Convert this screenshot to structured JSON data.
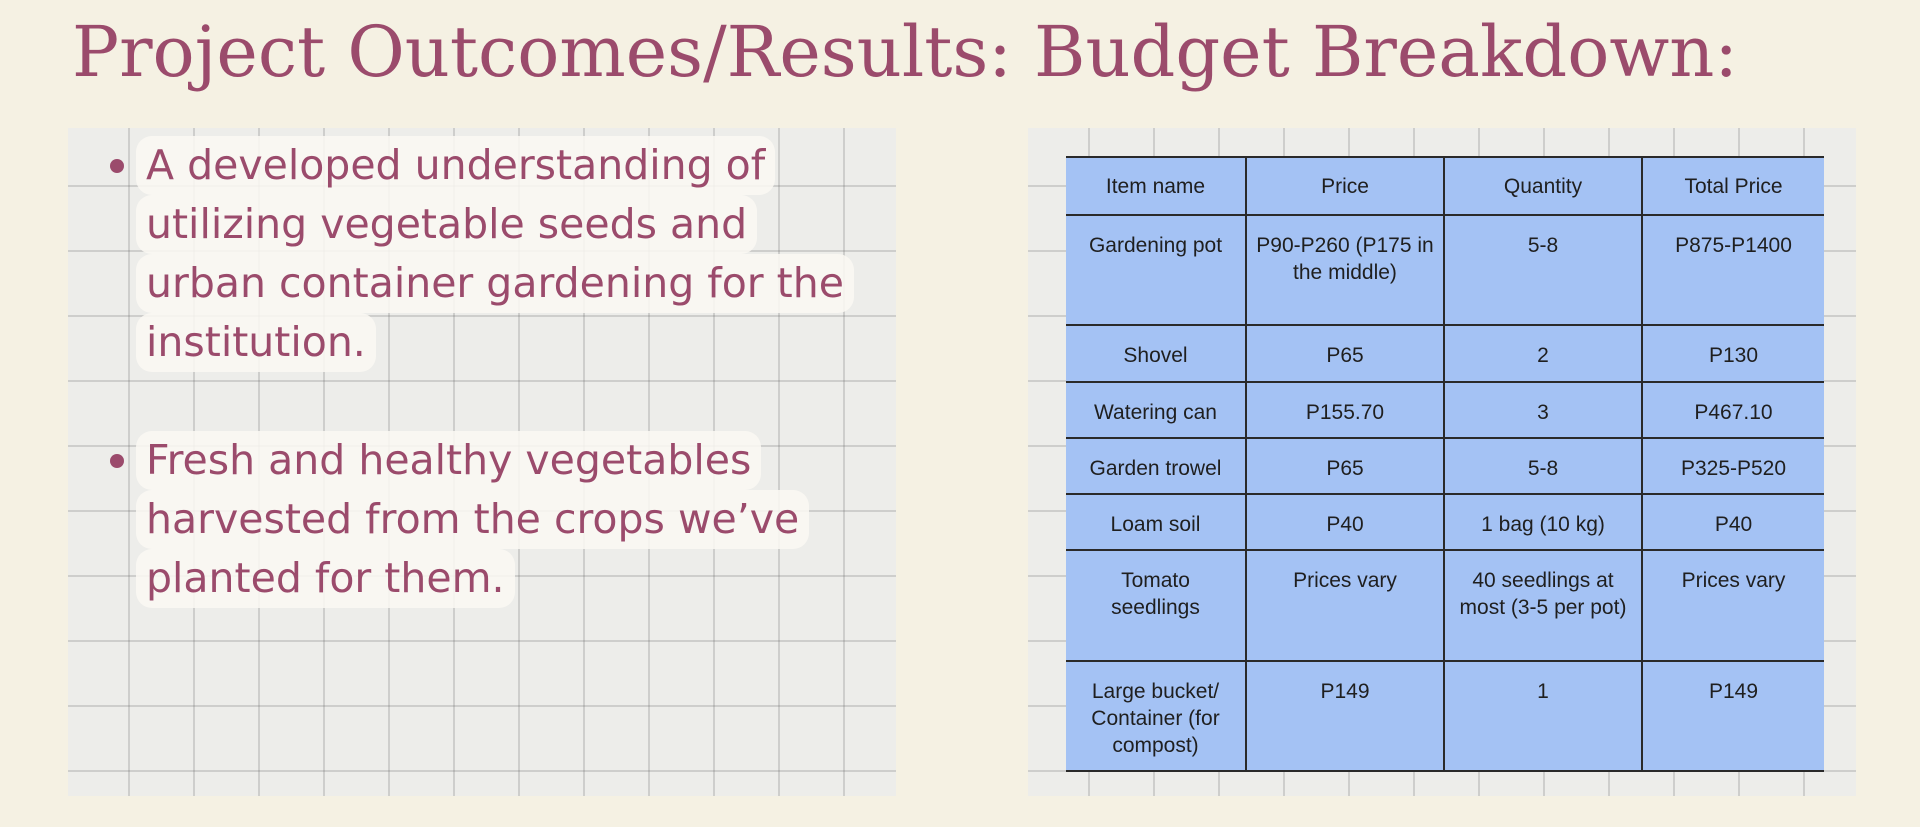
{
  "outcomes": {
    "title": "Project Outcomes/Results:",
    "items": [
      {
        "lines": [
          "A developed understanding of",
          "utilizing vegetable seeds and",
          "urban container gardening for the",
          "institution."
        ]
      },
      {
        "lines": [
          "Fresh and healthy vegetables",
          "harvested from the crops we’ve",
          "planted for them."
        ]
      }
    ]
  },
  "budget": {
    "title": "Budget Breakdown:",
    "headers": [
      "Item name",
      "Price",
      "Quantity",
      "Total Price"
    ],
    "rows": [
      [
        "Gardening pot",
        "P90-P260 (P175 in the middle)",
        "5-8",
        "P875-P1400"
      ],
      [
        "Shovel",
        "P65",
        "2",
        "P130"
      ],
      [
        "Watering can",
        "P155.70",
        "3",
        "P467.10"
      ],
      [
        "Garden trowel",
        "P65",
        "5-8",
        "P325-P520"
      ],
      [
        "Loam soil",
        "P40",
        "1 bag (10 kg)",
        "P40"
      ],
      [
        "Tomato seedlings",
        "Prices vary",
        "40 seedlings at most (3-5 per pot)",
        "Prices vary"
      ],
      [
        "Large bucket/ Container (for compost)",
        "P149",
        "1",
        "P149"
      ]
    ]
  }
}
